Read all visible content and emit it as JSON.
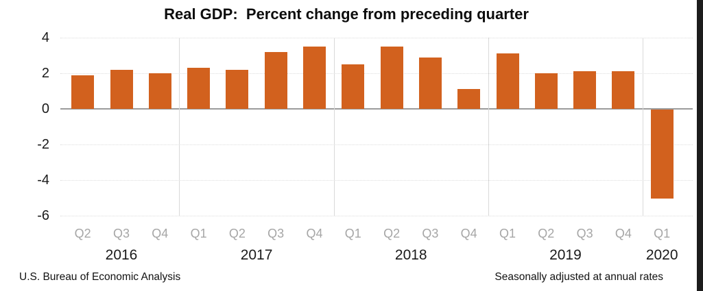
{
  "title": "Real GDP:  Percent change from preceding quarter",
  "footer_left": "U.S. Bureau of Economic Analysis",
  "footer_right": "Seasonally adjusted at annual rates",
  "colors": {
    "bar": "#d2611e",
    "quarter_label": "#a6a6a6",
    "year_label": "#1a1a1a",
    "gridline": "#dcdcdc",
    "zero_line": "#9b9b9b",
    "year_separator": "#d9d9d9",
    "right_strip": "#1c1c1c"
  },
  "chart_data": {
    "type": "bar",
    "title": "Real GDP:  Percent change from preceding quarter",
    "xlabel": "",
    "ylabel": "",
    "ylim": [
      -6,
      4
    ],
    "yticks": [
      4,
      2,
      0,
      -2,
      -4,
      -6
    ],
    "grid": "horizontal gridlines on, vertical separators between years",
    "legend_position": "none",
    "groups": [
      {
        "year": "2016",
        "quarters": [
          "Q2",
          "Q3",
          "Q4"
        ],
        "values": [
          1.9,
          2.2,
          2.0
        ]
      },
      {
        "year": "2017",
        "quarters": [
          "Q1",
          "Q2",
          "Q3",
          "Q4"
        ],
        "values": [
          2.3,
          2.2,
          3.2,
          3.5
        ]
      },
      {
        "year": "2018",
        "quarters": [
          "Q1",
          "Q2",
          "Q3",
          "Q4"
        ],
        "values": [
          2.5,
          3.5,
          2.9,
          1.1
        ]
      },
      {
        "year": "2019",
        "quarters": [
          "Q1",
          "Q2",
          "Q3",
          "Q4"
        ],
        "values": [
          3.1,
          2.0,
          2.1,
          2.1
        ]
      },
      {
        "year": "2020",
        "quarters": [
          "Q1"
        ],
        "values": [
          -5.0
        ]
      }
    ]
  }
}
